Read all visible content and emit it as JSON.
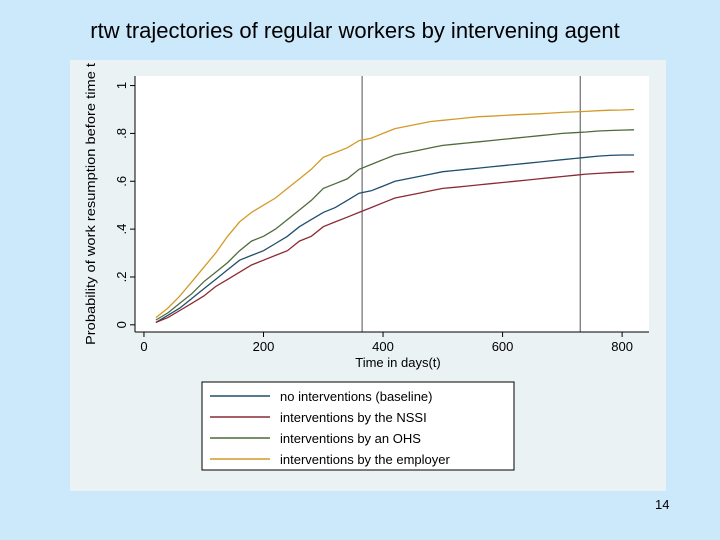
{
  "slide": {
    "title": "rtw trajectories of regular workers by intervening agent",
    "page_number": "14"
  },
  "chart_data": {
    "type": "line",
    "title": "rtw trajectories of regular workers by intervening agent",
    "xlabel": "Time in days(t)",
    "ylabel": "Probability of work resumption before time t",
    "xlim": [
      -15,
      845
    ],
    "ylim": [
      -0.03,
      1.04
    ],
    "xticks": [
      0,
      200,
      400,
      600,
      800
    ],
    "yticks": [
      0,
      0.2,
      0.4,
      0.6,
      0.8,
      1
    ],
    "ytick_labels": [
      "0",
      ".2",
      ".4",
      ".6",
      ".8",
      "1"
    ],
    "reference_lines_x": [
      365,
      730
    ],
    "grid": false,
    "legend_position": "bottom",
    "series": [
      {
        "name": "no interventions (baseline)",
        "color": "#1f4e6e",
        "x": [
          20,
          40,
          60,
          80,
          100,
          120,
          140,
          160,
          180,
          200,
          220,
          240,
          260,
          280,
          300,
          320,
          340,
          360,
          380,
          400,
          420,
          440,
          460,
          480,
          500,
          520,
          540,
          560,
          580,
          600,
          620,
          640,
          660,
          680,
          700,
          720,
          740,
          760,
          780,
          800,
          820
        ],
        "y": [
          0.01,
          0.04,
          0.07,
          0.11,
          0.15,
          0.19,
          0.23,
          0.27,
          0.29,
          0.31,
          0.34,
          0.37,
          0.41,
          0.44,
          0.47,
          0.49,
          0.52,
          0.55,
          0.56,
          0.58,
          0.6,
          0.61,
          0.62,
          0.63,
          0.64,
          0.645,
          0.65,
          0.655,
          0.66,
          0.665,
          0.67,
          0.675,
          0.68,
          0.685,
          0.69,
          0.695,
          0.7,
          0.705,
          0.708,
          0.71,
          0.71
        ]
      },
      {
        "name": "interventions by the NSSI",
        "color": "#8b2a33",
        "x": [
          20,
          40,
          60,
          80,
          100,
          120,
          140,
          160,
          180,
          200,
          220,
          240,
          260,
          280,
          300,
          320,
          340,
          360,
          380,
          400,
          420,
          440,
          460,
          480,
          500,
          520,
          540,
          560,
          580,
          600,
          620,
          640,
          660,
          680,
          700,
          720,
          740,
          760,
          780,
          800,
          820
        ],
        "y": [
          0.01,
          0.03,
          0.06,
          0.09,
          0.12,
          0.16,
          0.19,
          0.22,
          0.25,
          0.27,
          0.29,
          0.31,
          0.35,
          0.37,
          0.41,
          0.43,
          0.45,
          0.47,
          0.49,
          0.51,
          0.53,
          0.54,
          0.55,
          0.56,
          0.57,
          0.575,
          0.58,
          0.585,
          0.59,
          0.595,
          0.6,
          0.605,
          0.61,
          0.615,
          0.62,
          0.625,
          0.63,
          0.633,
          0.636,
          0.638,
          0.64
        ]
      },
      {
        "name": "interventions by an OHS",
        "color": "#4f6b3a",
        "x": [
          20,
          40,
          60,
          80,
          100,
          120,
          140,
          160,
          180,
          200,
          220,
          240,
          260,
          280,
          300,
          320,
          340,
          360,
          380,
          400,
          420,
          440,
          460,
          480,
          500,
          520,
          540,
          560,
          580,
          600,
          620,
          640,
          660,
          680,
          700,
          720,
          740,
          760,
          780,
          800,
          820
        ],
        "y": [
          0.02,
          0.05,
          0.09,
          0.13,
          0.18,
          0.22,
          0.26,
          0.31,
          0.35,
          0.37,
          0.4,
          0.44,
          0.48,
          0.52,
          0.57,
          0.59,
          0.61,
          0.65,
          0.67,
          0.69,
          0.71,
          0.72,
          0.73,
          0.74,
          0.75,
          0.755,
          0.76,
          0.765,
          0.77,
          0.775,
          0.78,
          0.785,
          0.79,
          0.795,
          0.8,
          0.803,
          0.806,
          0.81,
          0.812,
          0.814,
          0.815
        ]
      },
      {
        "name": "interventions by the employer",
        "color": "#d39a28",
        "x": [
          20,
          40,
          60,
          80,
          100,
          120,
          140,
          160,
          180,
          200,
          220,
          240,
          260,
          280,
          300,
          320,
          340,
          360,
          380,
          400,
          420,
          440,
          460,
          480,
          500,
          520,
          540,
          560,
          580,
          600,
          620,
          640,
          660,
          680,
          700,
          720,
          740,
          760,
          780,
          800,
          820
        ],
        "y": [
          0.03,
          0.07,
          0.12,
          0.18,
          0.24,
          0.3,
          0.37,
          0.43,
          0.47,
          0.5,
          0.53,
          0.57,
          0.61,
          0.65,
          0.7,
          0.72,
          0.74,
          0.77,
          0.78,
          0.8,
          0.82,
          0.83,
          0.84,
          0.85,
          0.855,
          0.86,
          0.865,
          0.87,
          0.872,
          0.875,
          0.878,
          0.88,
          0.882,
          0.885,
          0.888,
          0.89,
          0.892,
          0.895,
          0.897,
          0.898,
          0.9
        ]
      }
    ]
  }
}
